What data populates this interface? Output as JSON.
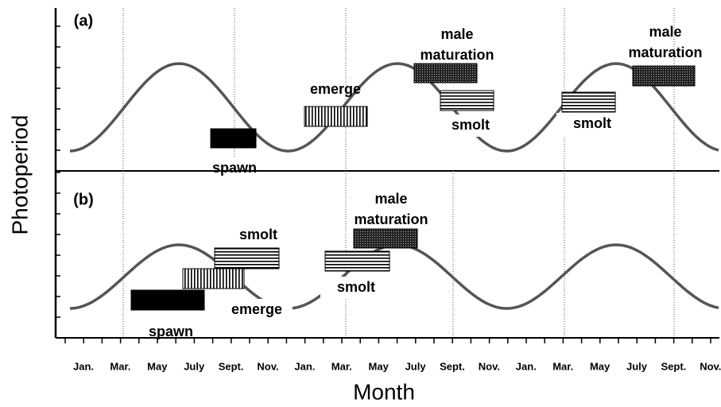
{
  "axes": {
    "y_label": "Photoperiod",
    "x_label": "Month",
    "months": [
      "Jan.",
      "Mar.",
      "May",
      "July",
      "Sept.",
      "Nov.",
      "Jan.",
      "Mar.",
      "May",
      "July",
      "Sept.",
      "Nov.",
      "Jan.",
      "Mar.",
      "May",
      "July",
      "Sept.",
      "Nov."
    ]
  },
  "panels": [
    {
      "label": "(a)",
      "events": [
        {
          "label": [
            "spawn"
          ]
        },
        {
          "label": [
            "emerge"
          ]
        },
        {
          "label": [
            "male",
            "maturation"
          ]
        },
        {
          "label": [
            "smolt"
          ]
        },
        {
          "label": [
            "smolt"
          ]
        },
        {
          "label": [
            "male",
            "maturation"
          ]
        }
      ]
    },
    {
      "label": "(b)",
      "events": [
        {
          "label": [
            "spawn"
          ]
        },
        {
          "label": [
            "emerge"
          ]
        },
        {
          "label": [
            "smolt"
          ]
        },
        {
          "label": [
            "smolt"
          ]
        },
        {
          "label": [
            "male",
            "maturation"
          ]
        }
      ]
    }
  ]
}
